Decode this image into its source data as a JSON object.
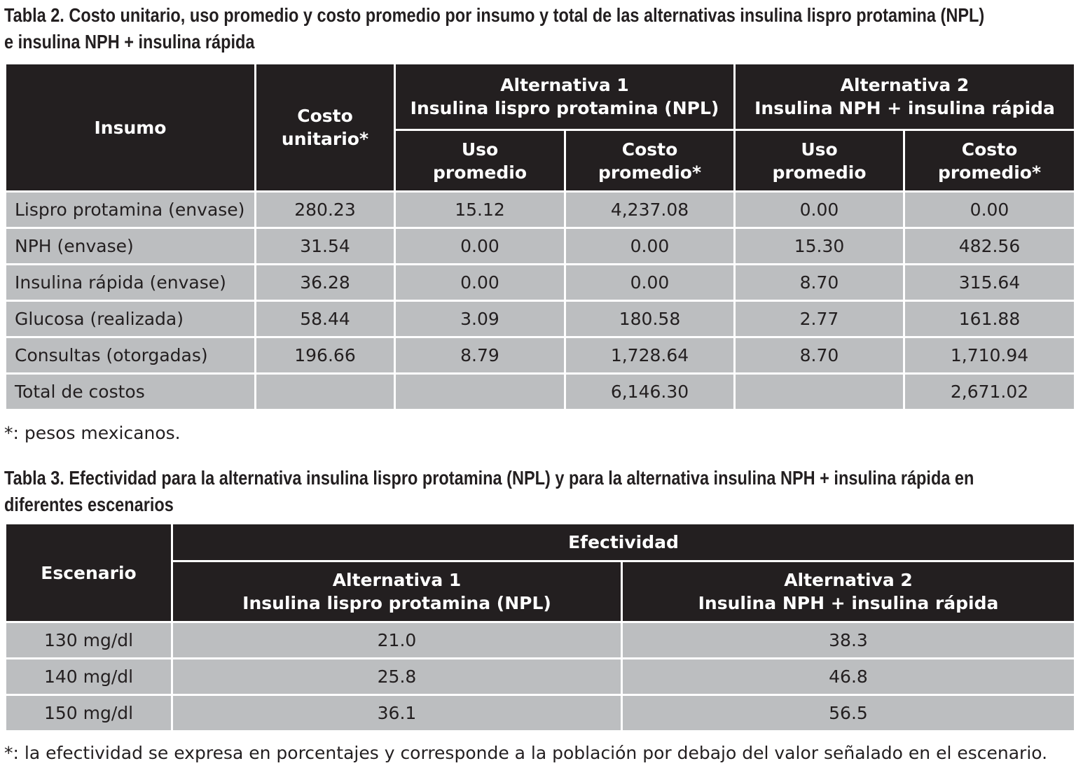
{
  "table2": {
    "title_line1": "Tabla 2. Costo unitario, uso promedio y costo promedio por insumo y total de las alternativas insulina lispro protamina (NPL)",
    "title_line2": "e insulina NPH + insulina rápida",
    "headers": {
      "insumo": "Insumo",
      "costo_unitario": [
        "Costo",
        "unitario*"
      ],
      "alt1": [
        "Alternativa 1",
        "Insulina lispro protamina (NPL)"
      ],
      "alt2": [
        "Alternativa 2",
        "Insulina NPH + insulina rápida"
      ],
      "uso": [
        "Uso",
        "promedio"
      ],
      "costo": [
        "Costo",
        "promedio*"
      ]
    },
    "rows": [
      [
        "Lispro protamina (envase)",
        "280.23",
        "15.12",
        "4,237.08",
        "0.00",
        "0.00"
      ],
      [
        "NPH (envase)",
        "31.54",
        "0.00",
        "0.00",
        "15.30",
        "482.56"
      ],
      [
        "Insulina rápida (envase)",
        "36.28",
        "0.00",
        "0.00",
        "8.70",
        "315.64"
      ],
      [
        "Glucosa (realizada)",
        "58.44",
        "3.09",
        "180.58",
        "2.77",
        "161.88"
      ],
      [
        "Consultas (otorgadas)",
        "196.66",
        "8.79",
        "1,728.64",
        "8.70",
        "1,710.94"
      ],
      [
        "Total de costos",
        "",
        "",
        "6,146.30",
        "",
        "2,671.02"
      ]
    ],
    "footnote": "*: pesos mexicanos."
  },
  "table3": {
    "title_line1": "Tabla 3. Efectividad para la alternativa insulina lispro protamina (NPL) y para la alternativa insulina NPH + insulina rápida en",
    "title_line2": "diferentes escenarios",
    "headers": {
      "escenario": "Escenario",
      "efectividad": "Efectividad",
      "alt1": [
        "Alternativa 1",
        "Insulina lispro protamina (NPL)"
      ],
      "alt2": [
        "Alternativa 2",
        "Insulina NPH + insulina rápida"
      ]
    },
    "rows": [
      [
        "130 mg/dl",
        "21.0",
        "38.3"
      ],
      [
        "140 mg/dl",
        "25.8",
        "46.8"
      ],
      [
        "150 mg/dl",
        "36.1",
        "56.5"
      ]
    ],
    "footnote": "*: la efectividad se expresa en porcentajes y corresponde a la población por debajo del valor señalado en el escenario."
  },
  "colors": {
    "header_bg": "#231f20",
    "row_bg": "#bcbec0",
    "text": "#231f20"
  }
}
